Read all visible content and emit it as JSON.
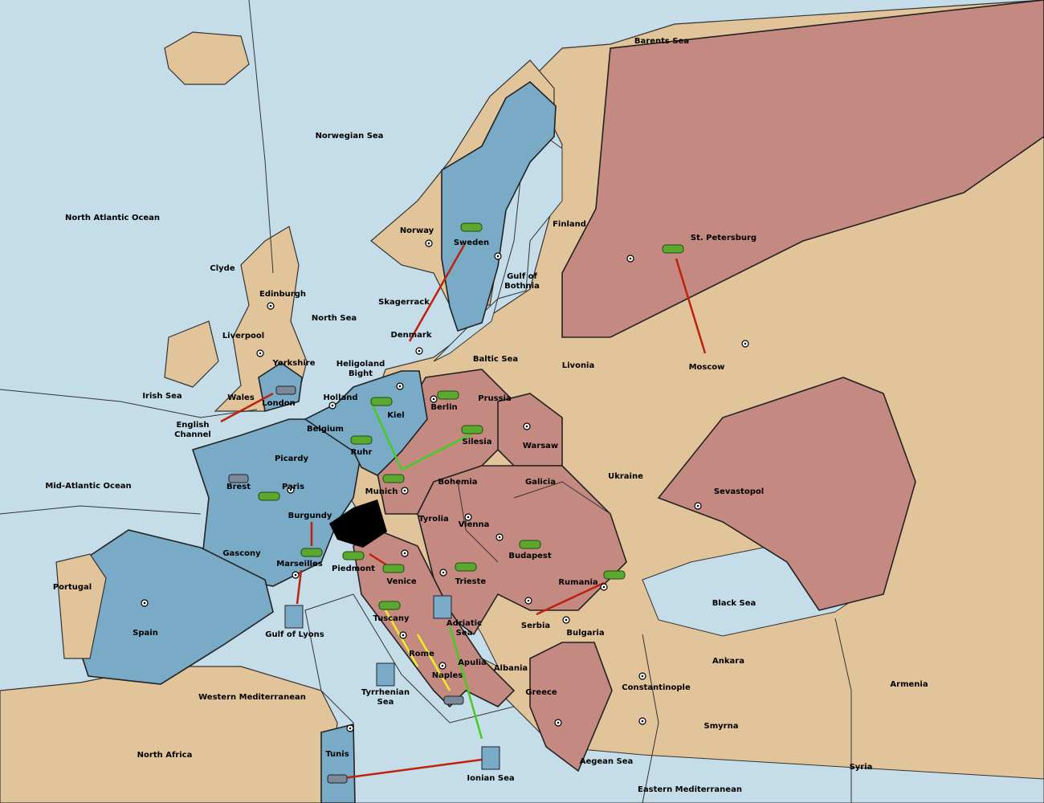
{
  "map": {
    "regions": [
      {
        "label": "Barents Sea"
      },
      {
        "label": "Norwegian Sea"
      },
      {
        "label": "North Atlantic Ocean"
      },
      {
        "label": "Norway"
      },
      {
        "label": "Sweden"
      },
      {
        "label": "Finland"
      },
      {
        "label": "St. Petersburg"
      },
      {
        "label": [
          "Gulf of",
          "Bothnia"
        ]
      },
      {
        "label": "Clyde"
      },
      {
        "label": "Edinburgh"
      },
      {
        "label": "Skagerrack"
      },
      {
        "label": "North Sea"
      },
      {
        "label": "Liverpool"
      },
      {
        "label": "Denmark"
      },
      {
        "label": "Baltic Sea"
      },
      {
        "label": "Livonia"
      },
      {
        "label": "Moscow"
      },
      {
        "label": "Yorkshire"
      },
      {
        "label": [
          "Heligoland",
          "Bight"
        ]
      },
      {
        "label": "Irish Sea"
      },
      {
        "label": "Wales"
      },
      {
        "label": "London"
      },
      {
        "label": "Holland"
      },
      {
        "label": "Prussia"
      },
      {
        "label": "Berlin"
      },
      {
        "label": "Kiel"
      },
      {
        "label": [
          "English",
          "Channel"
        ]
      },
      {
        "label": "Belgium"
      },
      {
        "label": "Silesia"
      },
      {
        "label": "Warsaw"
      },
      {
        "label": "Ruhr"
      },
      {
        "label": "Picardy"
      },
      {
        "label": "Ukraine"
      },
      {
        "label": "Mid-Atlantic Ocean"
      },
      {
        "label": "Brest"
      },
      {
        "label": "Paris"
      },
      {
        "label": "Bohemia"
      },
      {
        "label": "Galicia"
      },
      {
        "label": "Munich"
      },
      {
        "label": "Sevastopol"
      },
      {
        "label": "Burgundy"
      },
      {
        "label": "Tyrolia"
      },
      {
        "label": "Vienna"
      },
      {
        "label": "Gascony"
      },
      {
        "label": "Budapest"
      },
      {
        "label": "Marseilles"
      },
      {
        "label": "Piedmont"
      },
      {
        "label": "Venice"
      },
      {
        "label": "Trieste"
      },
      {
        "label": "Rumania"
      },
      {
        "label": "Portugal"
      },
      {
        "label": "Black Sea"
      },
      {
        "label": "Tuscany"
      },
      {
        "label": [
          "Adriatic",
          "Sea"
        ]
      },
      {
        "label": "Serbia"
      },
      {
        "label": "Spain"
      },
      {
        "label": "Gulf of Lyons"
      },
      {
        "label": "Bulgaria"
      },
      {
        "label": "Rome"
      },
      {
        "label": "Ankara"
      },
      {
        "label": "Apulia"
      },
      {
        "label": "Albania"
      },
      {
        "label": "Naples"
      },
      {
        "label": "Armenia"
      },
      {
        "label": "Constantinople"
      },
      {
        "label": "Greece"
      },
      {
        "label": "Western Mediterranean"
      },
      {
        "label": [
          "Tyrrhenian",
          "Sea"
        ]
      },
      {
        "label": "Smyrna"
      },
      {
        "label": "North Africa"
      },
      {
        "label": "Tunis"
      },
      {
        "label": "Aegean Sea"
      },
      {
        "label": "Syria"
      },
      {
        "label": "Ionian Sea"
      },
      {
        "label": "Eastern Mediterranean"
      }
    ]
  }
}
